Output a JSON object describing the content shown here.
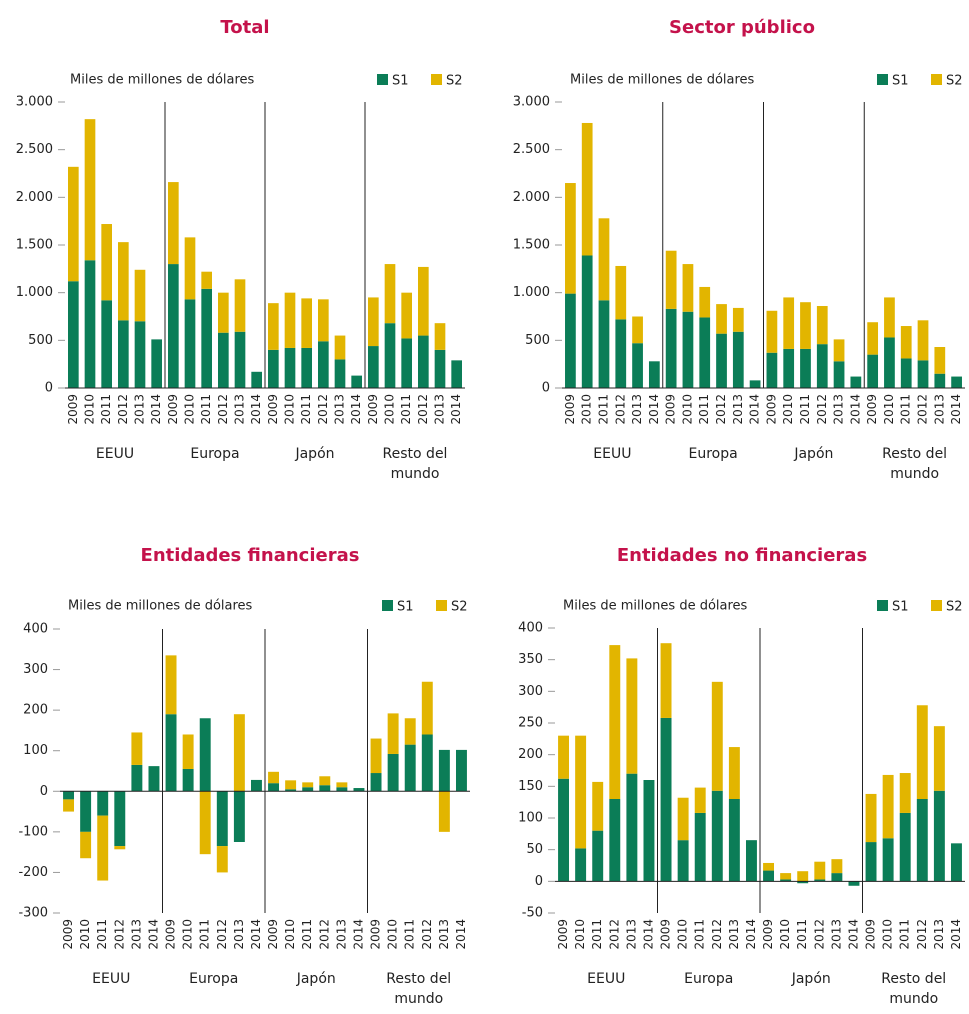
{
  "chart_data": [
    {
      "type": "bar",
      "stacked": true,
      "title": "Total",
      "y_label": "Miles de millones de dólares",
      "categories": [
        "2009",
        "2010",
        "2011",
        "2012",
        "2013",
        "2014",
        "2009",
        "2010",
        "2011",
        "2012",
        "2013",
        "2014",
        "2009",
        "2010",
        "2011",
        "2012",
        "2013",
        "2014",
        "2009",
        "2010",
        "2011",
        "2012",
        "2013",
        "2014"
      ],
      "groups": [
        "EEUU",
        "Europa",
        "Japón",
        "Resto del mundo"
      ],
      "series": [
        {
          "name": "S1",
          "color": "#0b7d57",
          "values": [
            1120,
            1340,
            920,
            710,
            700,
            510,
            1300,
            930,
            1040,
            580,
            590,
            170,
            400,
            420,
            420,
            490,
            300,
            130,
            440,
            680,
            520,
            550,
            400,
            290
          ]
        },
        {
          "name": "S2",
          "color": "#e2b500",
          "values": [
            1200,
            1480,
            800,
            820,
            540,
            0,
            860,
            650,
            180,
            420,
            550,
            0,
            490,
            580,
            520,
            440,
            250,
            0,
            510,
            620,
            480,
            720,
            280,
            0
          ]
        }
      ],
      "ylim": [
        0,
        3000
      ],
      "yticks": [
        0,
        500,
        {
          "value": 1000,
          "label": "1.000"
        },
        {
          "value": 1500,
          "label": "1.500"
        },
        {
          "value": 2000,
          "label": "2.000"
        },
        {
          "value": 2500,
          "label": "2.500"
        },
        {
          "value": 3000,
          "label": "3.000"
        }
      ]
    },
    {
      "type": "bar",
      "stacked": true,
      "title": "Sector público",
      "y_label": "Miles de millones de dólares",
      "categories": [
        "2009",
        "2010",
        "2011",
        "2012",
        "2013",
        "2014",
        "2009",
        "2010",
        "2011",
        "2012",
        "2013",
        "2014",
        "2009",
        "2010",
        "2011",
        "2012",
        "2013",
        "2014",
        "2009",
        "2010",
        "2011",
        "2012",
        "2013",
        "2014"
      ],
      "groups": [
        "EEUU",
        "Europa",
        "Japón",
        "Resto del mundo"
      ],
      "series": [
        {
          "name": "S1",
          "color": "#0b7d57",
          "values": [
            990,
            1390,
            920,
            720,
            470,
            280,
            830,
            800,
            740,
            570,
            590,
            80,
            370,
            410,
            410,
            460,
            280,
            120,
            350,
            530,
            310,
            290,
            150,
            120
          ]
        },
        {
          "name": "S2",
          "color": "#e2b500",
          "values": [
            1160,
            1390,
            860,
            560,
            280,
            0,
            610,
            500,
            320,
            310,
            250,
            0,
            440,
            540,
            490,
            400,
            230,
            0,
            340,
            420,
            340,
            420,
            280,
            0
          ]
        }
      ],
      "ylim": [
        0,
        3000
      ],
      "yticks": [
        0,
        500,
        {
          "value": 1000,
          "label": "1.000"
        },
        {
          "value": 1500,
          "label": "1.500"
        },
        {
          "value": 2000,
          "label": "2.000"
        },
        {
          "value": 2500,
          "label": "2.500"
        },
        {
          "value": 3000,
          "label": "3.000"
        }
      ]
    },
    {
      "type": "bar",
      "stacked": true,
      "title": "Entidades financieras",
      "y_label": "Miles de millones de dólares",
      "categories": [
        "2009",
        "2010",
        "2011",
        "2012",
        "2013",
        "2014",
        "2009",
        "2010",
        "2011",
        "2012",
        "2013",
        "2014",
        "2009",
        "2010",
        "2011",
        "2012",
        "2013",
        "2014",
        "2009",
        "2010",
        "2011",
        "2012",
        "2013",
        "2014"
      ],
      "groups": [
        "EEUU",
        "Europa",
        "Japón",
        "Resto del mundo"
      ],
      "series": [
        {
          "name": "S1",
          "color": "#0b7d57",
          "values": [
            -20,
            -100,
            -60,
            -135,
            65,
            62,
            190,
            55,
            180,
            -135,
            -125,
            28,
            20,
            5,
            10,
            15,
            10,
            8,
            45,
            92,
            115,
            140,
            102,
            102
          ]
        },
        {
          "name": "S2",
          "color": "#e2b500",
          "values": [
            -30,
            -65,
            -160,
            -8,
            80,
            0,
            145,
            85,
            -155,
            -65,
            190,
            0,
            28,
            22,
            12,
            22,
            12,
            0,
            85,
            100,
            65,
            130,
            -100,
            0
          ]
        }
      ],
      "ylim": [
        -300,
        400
      ],
      "yticks": [
        -300,
        -200,
        -100,
        0,
        100,
        200,
        300,
        400
      ]
    },
    {
      "type": "bar",
      "stacked": true,
      "title": "Entidades no financieras",
      "y_label": "Miles de millones de dólares",
      "categories": [
        "2009",
        "2010",
        "2011",
        "2012",
        "2013",
        "2014",
        "2009",
        "2010",
        "2011",
        "2012",
        "2013",
        "2014",
        "2009",
        "2010",
        "2011",
        "2012",
        "2013",
        "2014",
        "2009",
        "2010",
        "2011",
        "2012",
        "2013",
        "2014"
      ],
      "groups": [
        "EEUU",
        "Europa",
        "Japón",
        "Resto del mundo"
      ],
      "series": [
        {
          "name": "S1",
          "color": "#0b7d57",
          "values": [
            162,
            52,
            80,
            130,
            170,
            160,
            258,
            65,
            108,
            143,
            130,
            65,
            17,
            3,
            -3,
            3,
            13,
            -7,
            62,
            68,
            108,
            130,
            143,
            60
          ]
        },
        {
          "name": "S2",
          "color": "#e2b500",
          "values": [
            68,
            178,
            77,
            243,
            182,
            0,
            118,
            67,
            40,
            172,
            82,
            0,
            12,
            10,
            16,
            28,
            22,
            0,
            76,
            100,
            63,
            148,
            102,
            0
          ]
        }
      ],
      "ylim": [
        -50,
        400
      ],
      "yticks": [
        -50,
        0,
        50,
        100,
        150,
        200,
        250,
        300,
        350,
        400
      ]
    }
  ]
}
